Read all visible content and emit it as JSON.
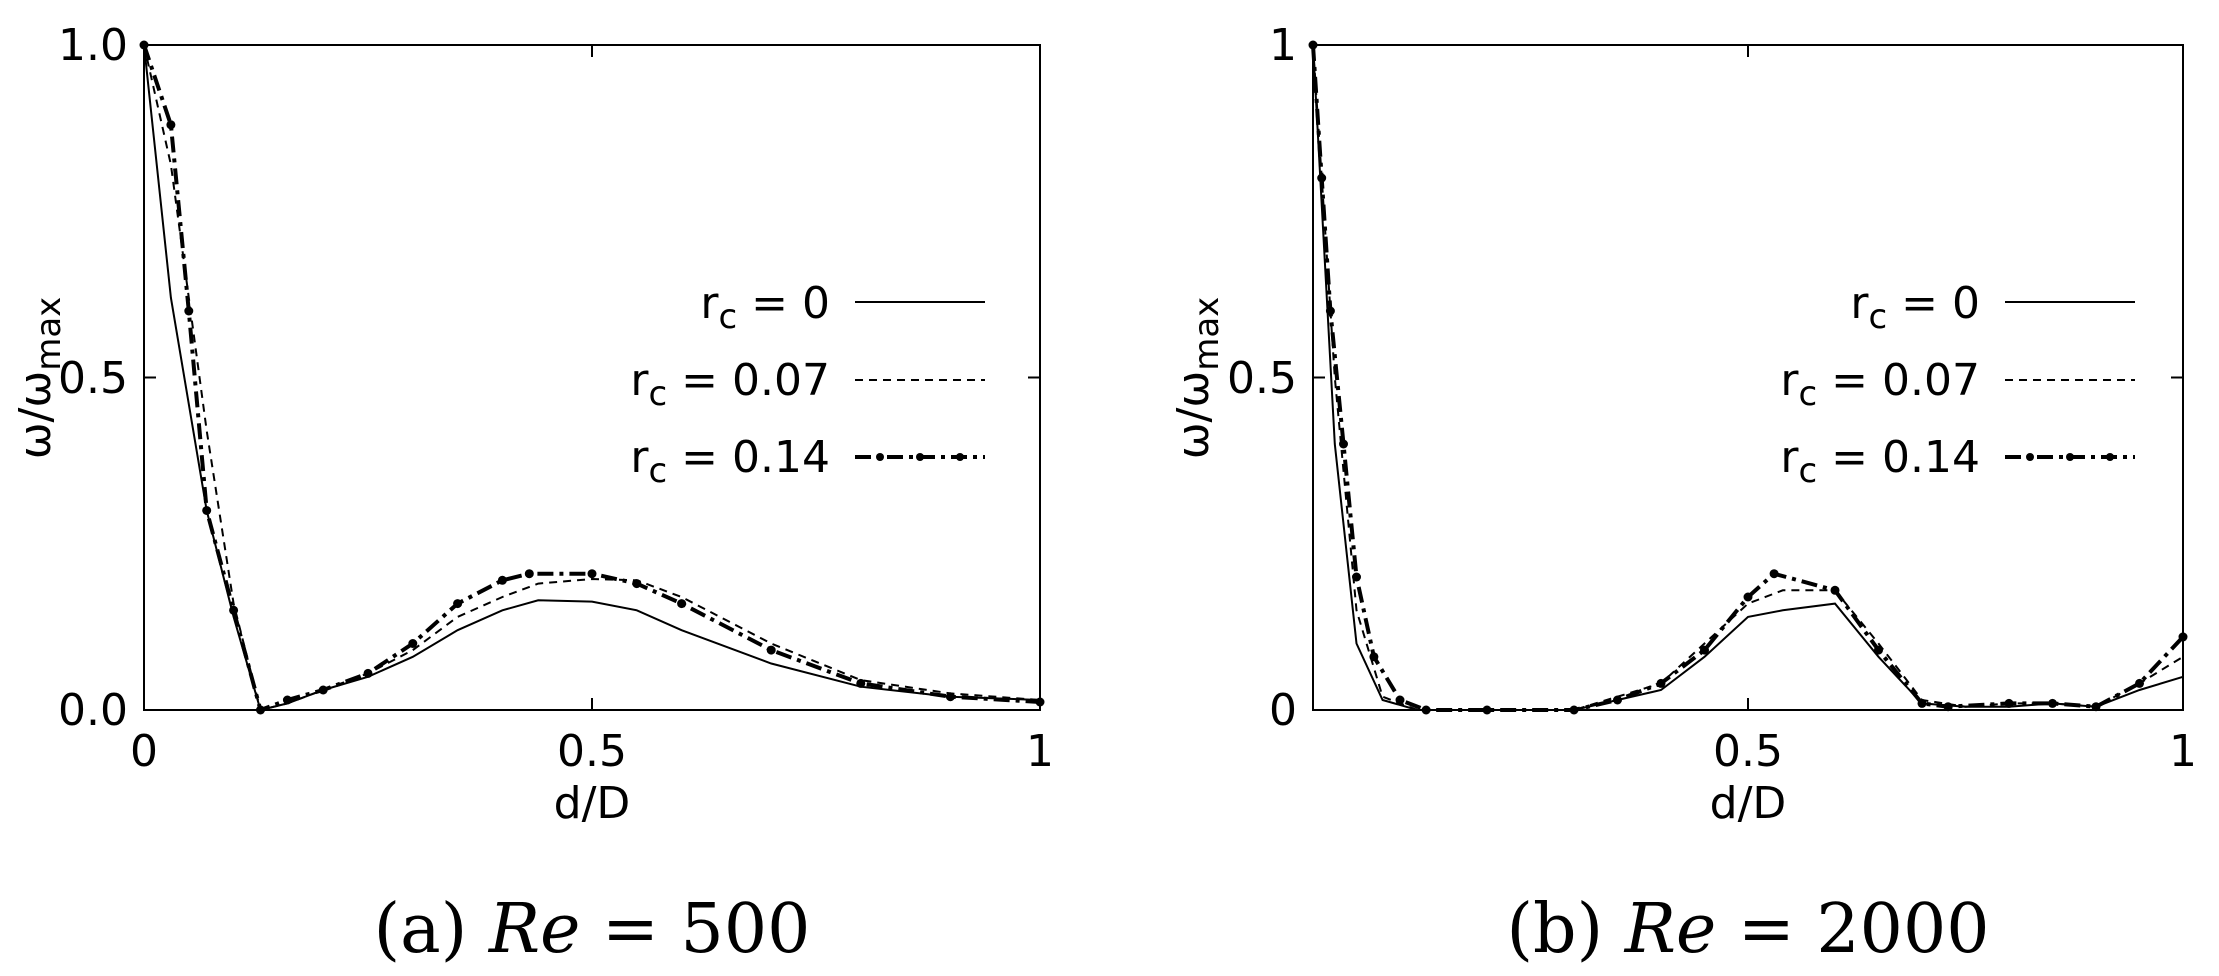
{
  "chart_data": [
    {
      "type": "line",
      "caption": {
        "prefix": "(a)",
        "math_var": "Re",
        "math_rest": " = 500"
      },
      "xlabel": "d/D",
      "ylabel_main": "ω/ω",
      "ylabel_sub": "max",
      "xlim": [
        0,
        1
      ],
      "ylim": [
        0,
        1
      ],
      "xticks": [
        {
          "value": 0,
          "label": "0"
        },
        {
          "value": 0.5,
          "label": "0.5"
        },
        {
          "value": 1,
          "label": "1"
        }
      ],
      "yticks": [
        {
          "value": 0,
          "label": "0.0"
        },
        {
          "value": 0.5,
          "label": "0.5"
        },
        {
          "value": 1,
          "label": "1.0"
        }
      ],
      "legend_position": "right",
      "series": [
        {
          "name_main": "r",
          "name_sub": "c",
          "name_rest": " = 0",
          "style": "solid",
          "x": [
            0,
            0.03,
            0.07,
            0.1,
            0.13,
            0.16,
            0.2,
            0.25,
            0.3,
            0.35,
            0.4,
            0.44,
            0.5,
            0.55,
            0.6,
            0.7,
            0.8,
            0.9,
            1.0
          ],
          "y": [
            1.0,
            0.62,
            0.3,
            0.14,
            0.0,
            0.01,
            0.03,
            0.05,
            0.08,
            0.12,
            0.15,
            0.165,
            0.163,
            0.15,
            0.12,
            0.07,
            0.035,
            0.02,
            0.015
          ]
        },
        {
          "name_main": "r",
          "name_sub": "c",
          "name_rest": " = 0.07",
          "style": "dashed",
          "x": [
            0,
            0.03,
            0.07,
            0.1,
            0.13,
            0.16,
            0.2,
            0.25,
            0.3,
            0.35,
            0.4,
            0.44,
            0.5,
            0.55,
            0.6,
            0.7,
            0.8,
            0.9,
            1.0
          ],
          "y": [
            1.0,
            0.82,
            0.42,
            0.16,
            0.0,
            0.01,
            0.03,
            0.055,
            0.09,
            0.14,
            0.17,
            0.19,
            0.197,
            0.195,
            0.17,
            0.1,
            0.045,
            0.025,
            0.015
          ]
        },
        {
          "name_main": "r",
          "name_sub": "c",
          "name_rest": " = 0.14",
          "style": "dash-dot-points",
          "x": [
            0,
            0.03,
            0.05,
            0.07,
            0.1,
            0.13,
            0.16,
            0.2,
            0.25,
            0.3,
            0.35,
            0.4,
            0.43,
            0.5,
            0.55,
            0.6,
            0.7,
            0.8,
            0.9,
            1.0
          ],
          "y": [
            1.0,
            0.88,
            0.6,
            0.3,
            0.15,
            0.0,
            0.015,
            0.03,
            0.055,
            0.1,
            0.16,
            0.195,
            0.205,
            0.205,
            0.19,
            0.16,
            0.09,
            0.04,
            0.02,
            0.012
          ]
        }
      ]
    },
    {
      "type": "line",
      "caption": {
        "prefix": "(b)",
        "math_var": "Re",
        "math_rest": " = 2000"
      },
      "xlabel": "d/D",
      "ylabel_main": "ω/ω",
      "ylabel_sub": "max",
      "xlim": [
        0,
        1
      ],
      "ylim": [
        0,
        1
      ],
      "xticks": [
        {
          "value": 0.5,
          "label": "0.5"
        },
        {
          "value": 1,
          "label": "1"
        }
      ],
      "yticks": [
        {
          "value": 0,
          "label": "0"
        },
        {
          "value": 0.5,
          "label": "0.5"
        },
        {
          "value": 1,
          "label": "1"
        }
      ],
      "legend_position": "right",
      "series": [
        {
          "name_main": "r",
          "name_sub": "c",
          "name_rest": " = 0",
          "style": "solid",
          "x": [
            0,
            0.025,
            0.05,
            0.08,
            0.12,
            0.2,
            0.3,
            0.4,
            0.45,
            0.5,
            0.54,
            0.6,
            0.65,
            0.7,
            0.75,
            0.8,
            0.85,
            0.9,
            0.95,
            1.0
          ],
          "y": [
            1.0,
            0.4,
            0.1,
            0.015,
            0.0,
            0.0,
            0.0,
            0.03,
            0.08,
            0.14,
            0.15,
            0.16,
            0.08,
            0.01,
            0.005,
            0.005,
            0.01,
            0.005,
            0.03,
            0.05
          ],
          "points": false
        },
        {
          "name_main": "r",
          "name_sub": "c",
          "name_rest": " = 0.07",
          "style": "dashed",
          "x": [
            0,
            0.025,
            0.05,
            0.08,
            0.12,
            0.2,
            0.3,
            0.4,
            0.45,
            0.5,
            0.54,
            0.6,
            0.65,
            0.7,
            0.75,
            0.8,
            0.85,
            0.9,
            0.95,
            1.0
          ],
          "y": [
            1.0,
            0.5,
            0.15,
            0.02,
            0.0,
            0.0,
            0.0,
            0.04,
            0.1,
            0.16,
            0.18,
            0.18,
            0.1,
            0.015,
            0.005,
            0.01,
            0.01,
            0.005,
            0.04,
            0.08
          ]
        },
        {
          "name_main": "r",
          "name_sub": "c",
          "name_rest": " = 0.14",
          "style": "dash-dot-points",
          "x": [
            0,
            0.01,
            0.02,
            0.035,
            0.05,
            0.07,
            0.1,
            0.13,
            0.2,
            0.3,
            0.35,
            0.4,
            0.45,
            0.5,
            0.53,
            0.6,
            0.65,
            0.7,
            0.73,
            0.8,
            0.85,
            0.9,
            0.95,
            1.0
          ],
          "y": [
            1.0,
            0.8,
            0.6,
            0.4,
            0.2,
            0.08,
            0.015,
            0.0,
            0.0,
            0.0,
            0.015,
            0.04,
            0.09,
            0.17,
            0.205,
            0.18,
            0.09,
            0.01,
            0.005,
            0.01,
            0.01,
            0.005,
            0.04,
            0.11
          ]
        }
      ]
    }
  ]
}
